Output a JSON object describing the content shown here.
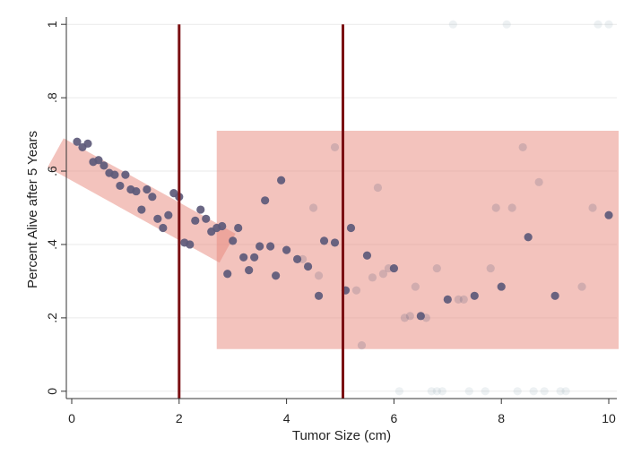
{
  "chart_data": {
    "type": "scatter",
    "xlabel": "Tumor Size (cm)",
    "ylabel": "Percent Alive after 5 Years",
    "xlim": [
      -0.1,
      10.15
    ],
    "ylim": [
      -0.02,
      1.02
    ],
    "x_ticks": [
      {
        "value": 0,
        "label": "0"
      },
      {
        "value": 2,
        "label": "2"
      },
      {
        "value": 4,
        "label": "4"
      },
      {
        "value": 6,
        "label": "6"
      },
      {
        "value": 8,
        "label": "8"
      },
      {
        "value": 10,
        "label": "10"
      }
    ],
    "y_ticks": [
      {
        "value": 0,
        "label": "0"
      },
      {
        "value": 0.2,
        "label": ".2"
      },
      {
        "value": 0.4,
        "label": ".4"
      },
      {
        "value": 0.6,
        "label": ".6"
      },
      {
        "value": 0.8,
        "label": ".8"
      },
      {
        "value": 1,
        "label": "1"
      }
    ],
    "grid": "horizontal",
    "legend": "none",
    "colors": {
      "marker": "#5d5a7a",
      "highlight_fill": "#e8877b",
      "vertical_line": "#7b1013",
      "grid": "#eaeaea",
      "axis": "#333333"
    },
    "vertical_lines": [
      2,
      5.05
    ],
    "highlight_regions": [
      {
        "shape": "band",
        "from": [
          -0.3,
          0.65
        ],
        "to": [
          2.9,
          0.39
        ],
        "width": 0.09
      },
      {
        "shape": "rect",
        "x": [
          2.7,
          10.2
        ],
        "y": [
          0.115,
          0.71
        ]
      }
    ],
    "series": [
      {
        "style": "solid",
        "points": [
          [
            0.1,
            0.68
          ],
          [
            0.2,
            0.665
          ],
          [
            0.3,
            0.675
          ],
          [
            0.4,
            0.625
          ],
          [
            0.5,
            0.63
          ],
          [
            0.6,
            0.615
          ],
          [
            0.7,
            0.595
          ],
          [
            0.8,
            0.59
          ],
          [
            0.9,
            0.56
          ],
          [
            1.0,
            0.59
          ],
          [
            1.1,
            0.55
          ],
          [
            1.2,
            0.545
          ],
          [
            1.3,
            0.495
          ],
          [
            1.4,
            0.55
          ],
          [
            1.5,
            0.53
          ],
          [
            1.6,
            0.47
          ],
          [
            1.7,
            0.445
          ],
          [
            1.8,
            0.48
          ],
          [
            1.9,
            0.54
          ],
          [
            2.0,
            0.53
          ],
          [
            2.1,
            0.405
          ],
          [
            2.2,
            0.4
          ],
          [
            2.3,
            0.465
          ],
          [
            2.4,
            0.495
          ],
          [
            2.5,
            0.47
          ],
          [
            2.6,
            0.435
          ],
          [
            2.7,
            0.445
          ],
          [
            2.8,
            0.45
          ],
          [
            2.9,
            0.32
          ],
          [
            3.0,
            0.41
          ],
          [
            3.1,
            0.445
          ],
          [
            3.2,
            0.365
          ],
          [
            3.3,
            0.33
          ],
          [
            3.4,
            0.365
          ],
          [
            3.5,
            0.395
          ],
          [
            3.6,
            0.52
          ],
          [
            3.7,
            0.395
          ],
          [
            3.8,
            0.315
          ],
          [
            3.9,
            0.575
          ],
          [
            4.0,
            0.385
          ],
          [
            4.2,
            0.36
          ],
          [
            4.4,
            0.34
          ],
          [
            4.6,
            0.26
          ],
          [
            4.7,
            0.41
          ],
          [
            4.9,
            0.405
          ],
          [
            5.1,
            0.275
          ],
          [
            5.2,
            0.445
          ],
          [
            5.5,
            0.37
          ],
          [
            6.0,
            0.335
          ],
          [
            6.5,
            0.205
          ],
          [
            7.0,
            0.25
          ],
          [
            7.5,
            0.26
          ],
          [
            8.0,
            0.285
          ],
          [
            8.5,
            0.42
          ],
          [
            9.0,
            0.26
          ],
          [
            10.0,
            0.48
          ]
        ]
      },
      {
        "style": "faded",
        "points": [
          [
            4.3,
            0.36
          ],
          [
            4.5,
            0.5
          ],
          [
            4.6,
            0.315
          ],
          [
            4.9,
            0.665
          ],
          [
            5.3,
            0.275
          ],
          [
            5.4,
            0.125
          ],
          [
            5.6,
            0.31
          ],
          [
            5.7,
            0.555
          ],
          [
            5.8,
            0.32
          ],
          [
            5.9,
            0.335
          ],
          [
            6.2,
            0.2
          ],
          [
            6.3,
            0.205
          ],
          [
            6.4,
            0.285
          ],
          [
            6.6,
            0.2
          ],
          [
            6.8,
            0.335
          ],
          [
            7.2,
            0.25
          ],
          [
            7.3,
            0.25
          ],
          [
            7.8,
            0.335
          ],
          [
            7.9,
            0.5
          ],
          [
            8.2,
            0.5
          ],
          [
            8.4,
            0.665
          ],
          [
            8.7,
            0.57
          ],
          [
            9.5,
            0.285
          ],
          [
            9.7,
            0.5
          ]
        ]
      },
      {
        "style": "ghost",
        "points": [
          [
            6.1,
            0
          ],
          [
            6.7,
            0
          ],
          [
            6.8,
            0
          ],
          [
            6.9,
            0
          ],
          [
            7.4,
            0
          ],
          [
            7.7,
            0
          ],
          [
            8.3,
            0
          ],
          [
            8.6,
            0
          ],
          [
            8.8,
            0
          ],
          [
            9.1,
            0
          ],
          [
            9.2,
            0
          ],
          [
            7.1,
            1
          ],
          [
            8.1,
            1
          ],
          [
            9.8,
            1
          ],
          [
            10.0,
            1
          ]
        ]
      }
    ]
  }
}
